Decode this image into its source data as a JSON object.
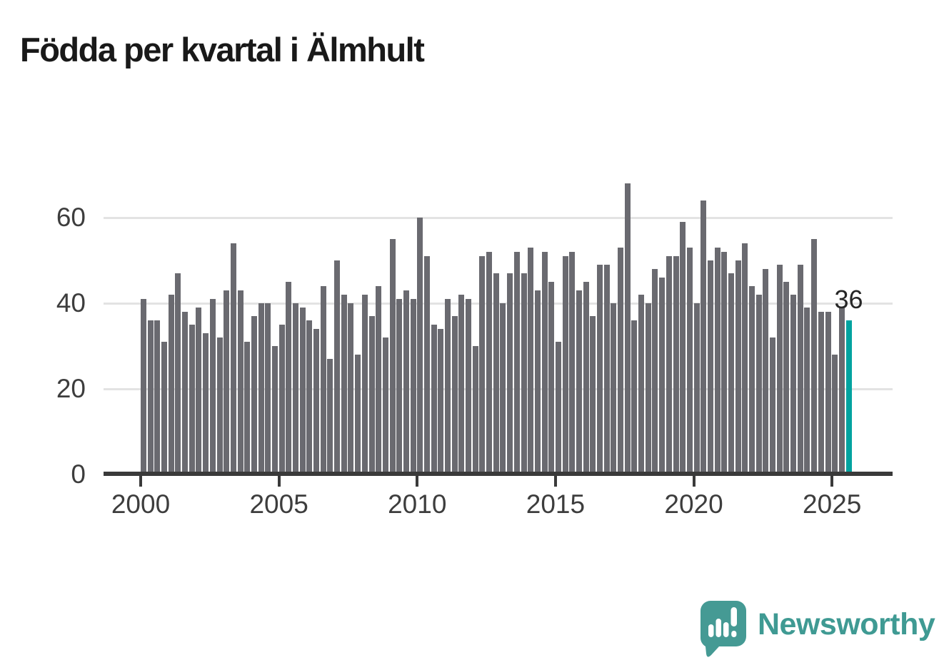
{
  "title": "Födda per kvartal i Älmhult",
  "annotation": {
    "value_label": "36"
  },
  "branding": {
    "logo_text": "Newsworthy",
    "logo_icon": "newsworthy-speech-bubble-bar-chart-icon",
    "logo_color": "#459a94"
  },
  "colors": {
    "bar": "#6a6a70",
    "highlight": "#00a3a0",
    "grid": "#e3e3e3",
    "axis": "#3a3a3a",
    "tick_text": "#3d3d3d",
    "title_text": "#191919"
  },
  "chart_data": {
    "type": "bar",
    "title": "Födda per kvartal i Älmhult",
    "xlabel": "",
    "ylabel": "",
    "x_start": "2000 Q1",
    "x_end": "2025 Q3",
    "grid": "horizontal",
    "legend": "none",
    "ylim": [
      0,
      70
    ],
    "y_ticks": [
      0,
      20,
      40,
      60
    ],
    "x_ticks": [
      "2000",
      "2005",
      "2010",
      "2015",
      "2020",
      "2025"
    ],
    "highlight_index": 102,
    "highlight_value": 36,
    "categories": [
      "2000 Q1",
      "2000 Q2",
      "2000 Q3",
      "2000 Q4",
      "2001 Q1",
      "2001 Q2",
      "2001 Q3",
      "2001 Q4",
      "2002 Q1",
      "2002 Q2",
      "2002 Q3",
      "2002 Q4",
      "2003 Q1",
      "2003 Q2",
      "2003 Q3",
      "2003 Q4",
      "2004 Q1",
      "2004 Q2",
      "2004 Q3",
      "2004 Q4",
      "2005 Q1",
      "2005 Q2",
      "2005 Q3",
      "2005 Q4",
      "2006 Q1",
      "2006 Q2",
      "2006 Q3",
      "2006 Q4",
      "2007 Q1",
      "2007 Q2",
      "2007 Q3",
      "2007 Q4",
      "2008 Q1",
      "2008 Q2",
      "2008 Q3",
      "2008 Q4",
      "2009 Q1",
      "2009 Q2",
      "2009 Q3",
      "2009 Q4",
      "2010 Q1",
      "2010 Q2",
      "2010 Q3",
      "2010 Q4",
      "2011 Q1",
      "2011 Q2",
      "2011 Q3",
      "2011 Q4",
      "2012 Q1",
      "2012 Q2",
      "2012 Q3",
      "2012 Q4",
      "2013 Q1",
      "2013 Q2",
      "2013 Q3",
      "2013 Q4",
      "2014 Q1",
      "2014 Q2",
      "2014 Q3",
      "2014 Q4",
      "2015 Q1",
      "2015 Q2",
      "2015 Q3",
      "2015 Q4",
      "2016 Q1",
      "2016 Q2",
      "2016 Q3",
      "2016 Q4",
      "2017 Q1",
      "2017 Q2",
      "2017 Q3",
      "2017 Q4",
      "2018 Q1",
      "2018 Q2",
      "2018 Q3",
      "2018 Q4",
      "2019 Q1",
      "2019 Q2",
      "2019 Q3",
      "2019 Q4",
      "2020 Q1",
      "2020 Q2",
      "2020 Q3",
      "2020 Q4",
      "2021 Q1",
      "2021 Q2",
      "2021 Q3",
      "2021 Q4",
      "2022 Q1",
      "2022 Q2",
      "2022 Q3",
      "2022 Q4",
      "2023 Q1",
      "2023 Q2",
      "2023 Q3",
      "2023 Q4",
      "2024 Q1",
      "2024 Q2",
      "2024 Q3",
      "2024 Q4",
      "2025 Q1",
      "2025 Q2",
      "2025 Q3"
    ],
    "values": [
      41,
      36,
      36,
      31,
      42,
      47,
      38,
      35,
      39,
      33,
      41,
      32,
      43,
      54,
      43,
      31,
      37,
      40,
      40,
      30,
      35,
      45,
      40,
      39,
      36,
      34,
      44,
      27,
      50,
      42,
      40,
      28,
      42,
      37,
      44,
      32,
      55,
      41,
      43,
      41,
      60,
      51,
      35,
      34,
      41,
      37,
      42,
      41,
      30,
      51,
      52,
      47,
      40,
      47,
      52,
      47,
      53,
      43,
      52,
      45,
      31,
      51,
      52,
      43,
      45,
      37,
      49,
      49,
      40,
      53,
      68,
      36,
      42,
      40,
      48,
      46,
      51,
      51,
      59,
      53,
      40,
      64,
      50,
      53,
      52,
      47,
      50,
      54,
      44,
      42,
      48,
      32,
      49,
      45,
      42,
      49,
      39,
      55,
      38,
      38,
      28,
      39,
      36
    ]
  }
}
